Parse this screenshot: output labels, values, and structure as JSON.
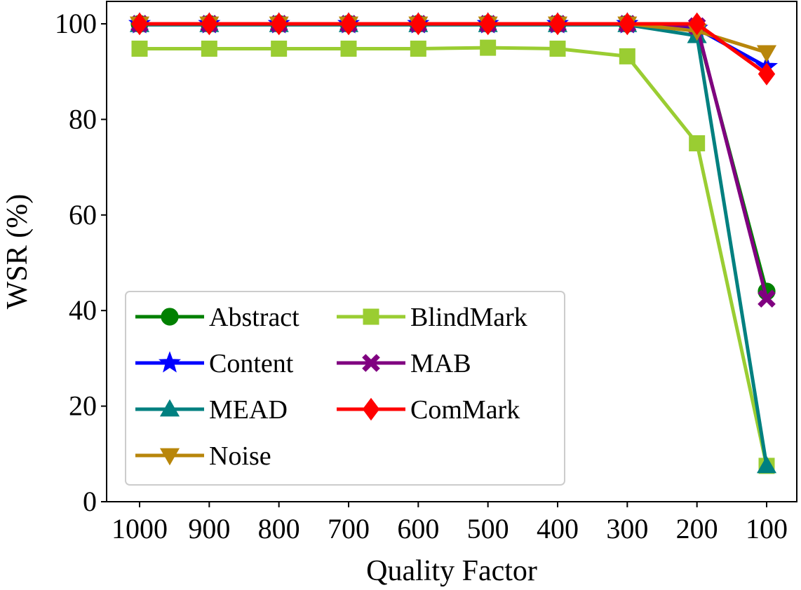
{
  "chart_data": {
    "type": "line",
    "xlabel": "Quality Factor",
    "ylabel": "WSR (%)",
    "categories": [
      "1000",
      "900",
      "800",
      "700",
      "600",
      "500",
      "400",
      "300",
      "200",
      "100"
    ],
    "ylim": [
      0,
      103
    ],
    "yticks": [
      0,
      20,
      40,
      60,
      80,
      100
    ],
    "grid": false,
    "legend": {
      "placement": "lower-left",
      "columns": 2
    },
    "series": [
      {
        "name": "Abstract",
        "color": "#008000",
        "marker": "circle",
        "values": [
          100,
          100,
          100,
          100,
          100,
          100,
          100,
          100,
          99,
          44
        ]
      },
      {
        "name": "Content",
        "color": "#0000ff",
        "marker": "star",
        "values": [
          100,
          100,
          100,
          100,
          100,
          100,
          100,
          100,
          99,
          91
        ]
      },
      {
        "name": "MEAD",
        "color": "#008080",
        "marker": "triangle-up",
        "values": [
          99.8,
          99.8,
          99.8,
          99.8,
          99.8,
          99.8,
          99.8,
          99.8,
          97.5,
          7.5
        ]
      },
      {
        "name": "Noise",
        "color": "#b8860b",
        "marker": "triangle-down",
        "values": [
          100,
          100,
          100,
          100,
          100,
          100,
          100,
          100,
          98.5,
          94
        ]
      },
      {
        "name": "BlindMark",
        "color": "#9acd32",
        "marker": "square",
        "values": [
          94.8,
          94.8,
          94.8,
          94.8,
          94.8,
          95,
          94.8,
          93.2,
          75,
          7.5
        ]
      },
      {
        "name": "MAB",
        "color": "#800080",
        "marker": "x-cross",
        "values": [
          100,
          100,
          100,
          100,
          100,
          100,
          100,
          100,
          99.5,
          42.5
        ]
      },
      {
        "name": "ComMark",
        "color": "#ff0000",
        "marker": "diamond",
        "values": [
          100,
          100,
          100,
          100,
          100,
          100,
          100,
          100,
          100,
          89.5
        ]
      }
    ]
  }
}
